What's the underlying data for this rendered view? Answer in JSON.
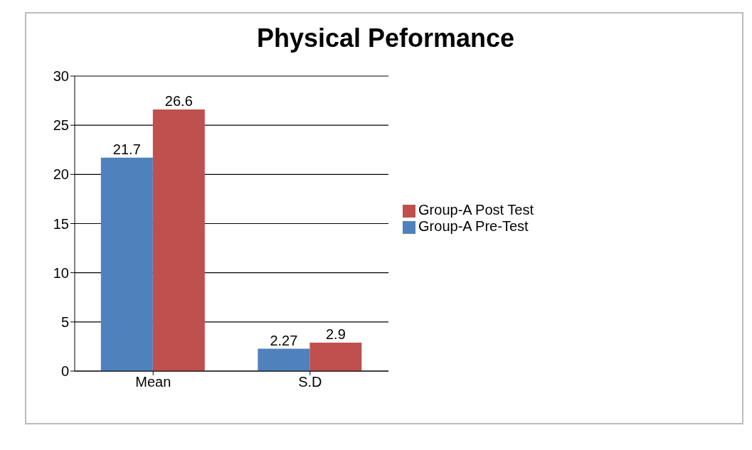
{
  "chart_data": {
    "type": "bar",
    "title": "Physical Peformance",
    "categories": [
      "Mean",
      "S.D"
    ],
    "series": [
      {
        "name": "Group-A Pre-Test",
        "color": "#4f81bd",
        "values": [
          21.7,
          2.27
        ]
      },
      {
        "name": "Group-A Post Test",
        "color": "#c0504d",
        "values": [
          26.6,
          2.9
        ]
      }
    ],
    "ylim": [
      0,
      30
    ],
    "yticks": [
      0,
      5,
      10,
      15,
      20,
      25,
      30
    ],
    "grid": "y",
    "legend": "right",
    "data_labels": true
  }
}
